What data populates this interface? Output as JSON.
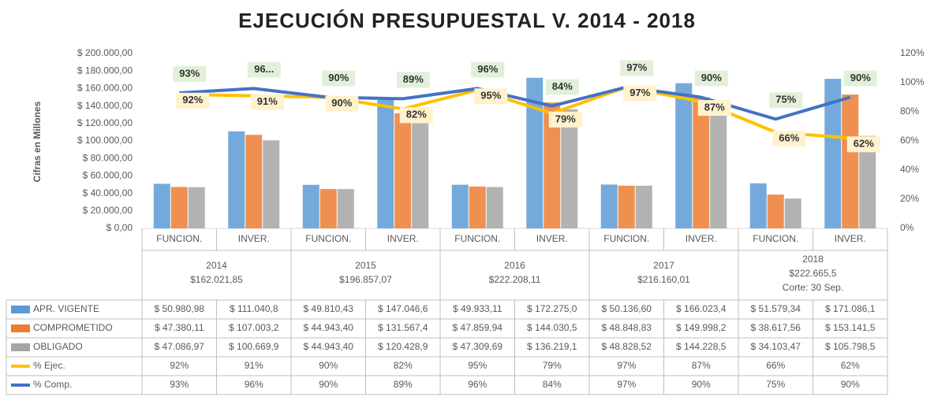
{
  "chart_data": {
    "type": "bar",
    "title": "EJECUCIÓN PRESUPUESTAL V. 2014 - 2018",
    "y_label": "Cifras en Millones",
    "categories": [
      "FUNCION.",
      "INVER.",
      "FUNCION.",
      "INVER.",
      "FUNCION.",
      "INVER.",
      "FUNCION.",
      "INVER.",
      "FUNCION.",
      "INVER."
    ],
    "groups": [
      {
        "year": "2014",
        "total": "$162.021,85"
      },
      {
        "year": "2015",
        "total": "$196.857,07"
      },
      {
        "year": "2016",
        "total": "$222.208,11"
      },
      {
        "year": "2017",
        "total": "$216.160,01"
      },
      {
        "year": "2018",
        "total": "$222.665,5",
        "note": "Corte: 30 Sep."
      }
    ],
    "ylim": [
      0,
      200000
    ],
    "yticks": [
      {
        "value": 0,
        "label": "$ 0,00"
      },
      {
        "value": 20000,
        "label": "$ 20.000,00"
      },
      {
        "value": 40000,
        "label": "$ 40.000,00"
      },
      {
        "value": 60000,
        "label": "$ 60.000,00"
      },
      {
        "value": 80000,
        "label": "$ 80.000,00"
      },
      {
        "value": 100000,
        "label": "$ 100.000,00"
      },
      {
        "value": 120000,
        "label": "$ 120.000,00"
      },
      {
        "value": 140000,
        "label": "$ 140.000,00"
      },
      {
        "value": 160000,
        "label": "$ 160.000,00"
      },
      {
        "value": 180000,
        "label": "$ 180.000,00"
      },
      {
        "value": 200000,
        "label": "$ 200.000,00"
      }
    ],
    "y2lim": [
      0,
      120
    ],
    "y2ticks": [
      {
        "value": 0,
        "label": "0%"
      },
      {
        "value": 20,
        "label": "20%"
      },
      {
        "value": 40,
        "label": "40%"
      },
      {
        "value": 60,
        "label": "60%"
      },
      {
        "value": 80,
        "label": "80%"
      },
      {
        "value": 100,
        "label": "100%"
      },
      {
        "value": 120,
        "label": "120%"
      }
    ],
    "series": [
      {
        "name": "APR. VIGENTE",
        "color": "#5b9bd5",
        "kind": "bar",
        "values": [
          50980.98,
          111040.8,
          49810.43,
          147046.6,
          49933.11,
          172275.0,
          50136.6,
          166023.4,
          51579.34,
          171086.1
        ],
        "value_labels": [
          "$ 50.980,98",
          "$ 111.040,8",
          "$ 49.810,43",
          "$ 147.046,6",
          "$ 49.933,11",
          "$ 172.275,0",
          "$ 50.136,60",
          "$ 166.023,4",
          "$ 51.579,34",
          "$ 171.086,1"
        ]
      },
      {
        "name": "COMPROMETIDO",
        "color": "#ed7d31",
        "kind": "bar",
        "values": [
          47380.11,
          107003.2,
          44943.4,
          131567.4,
          47859.94,
          144030.5,
          48848.83,
          149998.2,
          38617.56,
          153141.5
        ],
        "value_labels": [
          "$ 47.380,11",
          "$ 107.003,2",
          "$ 44.943,40",
          "$ 131.567,4",
          "$ 47.859,94",
          "$ 144.030,5",
          "$ 48.848,83",
          "$ 149.998,2",
          "$ 38.617,56",
          "$ 153.141,5"
        ]
      },
      {
        "name": "OBLIGADO",
        "color": "#a5a5a5",
        "kind": "bar",
        "values": [
          47086.97,
          100669.9,
          44943.4,
          120428.9,
          47309.69,
          136219.1,
          48828.52,
          144228.5,
          34103.47,
          105798.5
        ],
        "value_labels": [
          "$ 47.086,97",
          "$ 100.669,9",
          "$ 44.943,40",
          "$ 120.428,9",
          "$ 47.309,69",
          "$ 136.219,1",
          "$ 48.828,52",
          "$ 144.228,5",
          "$ 34.103,47",
          "$ 105.798,5"
        ]
      },
      {
        "name": "% Ejec.",
        "color": "#ffc000",
        "kind": "line",
        "axis": "y2",
        "values": [
          92,
          91,
          90,
          82,
          95,
          79,
          97,
          87,
          66,
          62
        ],
        "value_labels": [
          "92%",
          "91%",
          "90%",
          "82%",
          "95%",
          "79%",
          "97%",
          "87%",
          "66%",
          "62%"
        ],
        "table_labels": [
          "92%",
          "91%",
          "90%",
          "82%",
          "95%",
          "79%",
          "97%",
          "87%",
          "66%",
          "62%"
        ]
      },
      {
        "name": "% Comp.",
        "color": "#4472c4",
        "kind": "line",
        "axis": "y2",
        "values": [
          93,
          96,
          90,
          89,
          96,
          84,
          97,
          90,
          75,
          90
        ],
        "value_labels": [
          "93%",
          "96...",
          "90%",
          "89%",
          "96%",
          "84%",
          "97%",
          "90%",
          "75%",
          "90%"
        ],
        "table_labels": [
          "93%",
          "96%",
          "90%",
          "89%",
          "96%",
          "84%",
          "97%",
          "90%",
          "75%",
          "90%"
        ]
      }
    ]
  }
}
